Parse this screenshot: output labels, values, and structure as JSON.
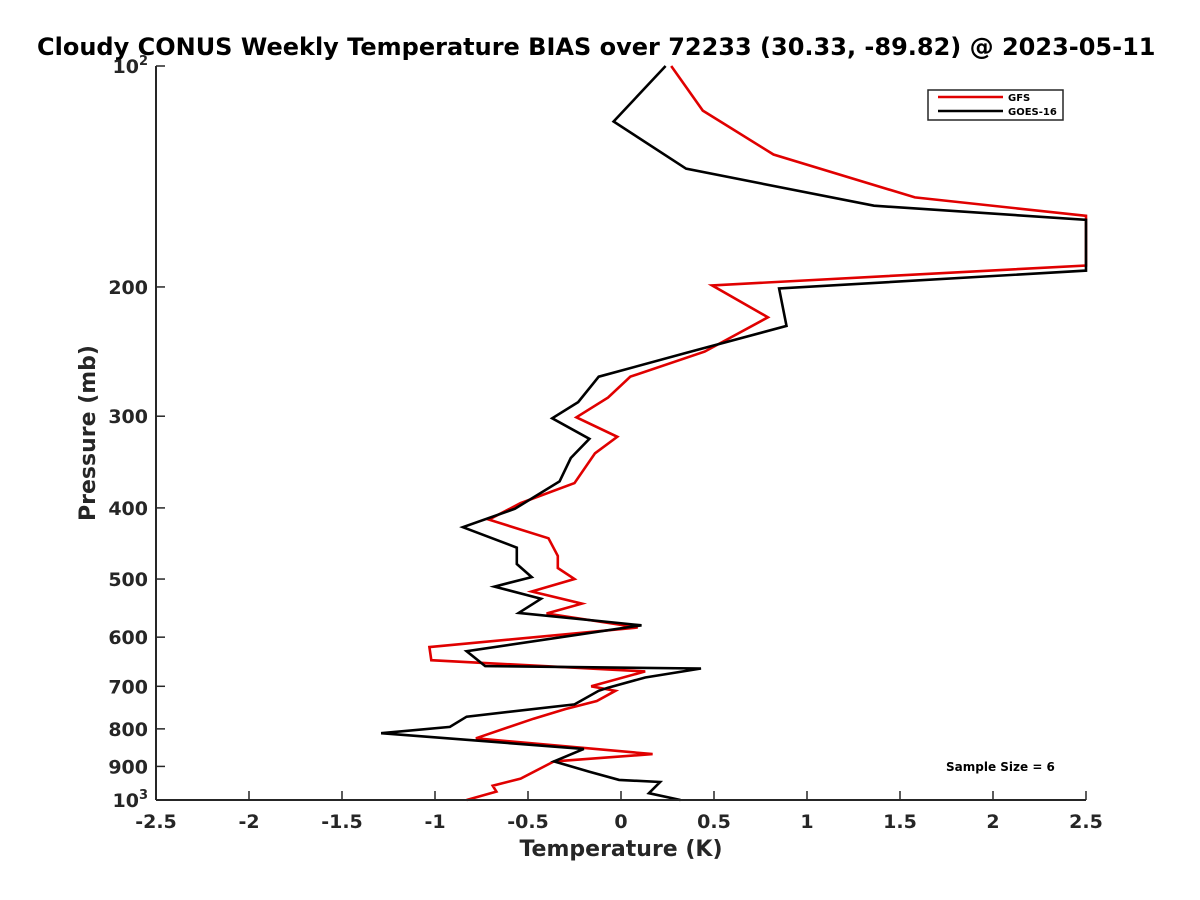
{
  "chart_data": {
    "type": "line",
    "title": "Cloudy CONUS Weekly Temperature BIAS over 72233 (30.33, -89.82) @ 2023-05-11",
    "xlabel": "Temperature (K)",
    "ylabel": "Pressure (mb)",
    "xlim": [
      -2.5,
      2.5
    ],
    "ylim": [
      100,
      1000
    ],
    "yscale": "log",
    "x_ticks": [
      -2.5,
      -2,
      -1.5,
      -1,
      -0.5,
      0,
      0.5,
      1,
      1.5,
      2,
      2.5
    ],
    "x_tick_labels": [
      "-2.5",
      "-2",
      "-1.5",
      "-1",
      "-0.5",
      "0",
      "0.5",
      "1",
      "1.5",
      "2",
      "2.5"
    ],
    "y_ticks": [
      100,
      200,
      300,
      400,
      500,
      600,
      700,
      800,
      900,
      1000
    ],
    "y_tick_labels": [
      {
        "base": "10",
        "exp": "2"
      },
      {
        "base": "200",
        "exp": ""
      },
      {
        "base": "300",
        "exp": ""
      },
      {
        "base": "400",
        "exp": ""
      },
      {
        "base": "500",
        "exp": ""
      },
      {
        "base": "600",
        "exp": ""
      },
      {
        "base": "700",
        "exp": ""
      },
      {
        "base": "800",
        "exp": ""
      },
      {
        "base": "900",
        "exp": ""
      },
      {
        "base": "10",
        "exp": "3"
      }
    ],
    "grid": false,
    "legend_position": "top-right",
    "annotation": "Sample Size = 6",
    "series": [
      {
        "name": "GFS",
        "color": "#e00000",
        "points": [
          [
            0.27,
            100
          ],
          [
            0.44,
            115
          ],
          [
            0.82,
            132
          ],
          [
            1.58,
            151
          ],
          [
            2.5,
            160
          ],
          [
            2.5,
            187
          ],
          [
            0.49,
            199
          ],
          [
            0.79,
            220
          ],
          [
            0.45,
            245
          ],
          [
            0.05,
            265
          ],
          [
            -0.07,
            283
          ],
          [
            -0.24,
            301
          ],
          [
            -0.02,
            320
          ],
          [
            -0.14,
            337
          ],
          [
            -0.25,
            370
          ],
          [
            -0.54,
            394
          ],
          [
            -0.71,
            415
          ],
          [
            -0.39,
            440
          ],
          [
            -0.34,
            465
          ],
          [
            -0.34,
            483
          ],
          [
            -0.25,
            500
          ],
          [
            -0.48,
            520
          ],
          [
            -0.21,
            540
          ],
          [
            -0.4,
            557
          ],
          [
            0.09,
            582
          ],
          [
            -1.03,
            619
          ],
          [
            -1.02,
            645
          ],
          [
            0.13,
            668
          ],
          [
            -0.16,
            700
          ],
          [
            -0.03,
            710
          ],
          [
            -0.13,
            733
          ],
          [
            -0.3,
            752
          ],
          [
            -0.47,
            775
          ],
          [
            -0.78,
            824
          ],
          [
            0.17,
            866
          ],
          [
            -0.36,
            886
          ],
          [
            -0.54,
            935
          ],
          [
            -0.69,
            956
          ],
          [
            -0.67,
            974
          ],
          [
            -0.83,
            1000
          ]
        ]
      },
      {
        "name": "GOES-16",
        "color": "#000000",
        "points": [
          [
            0.24,
            100
          ],
          [
            -0.04,
            119
          ],
          [
            0.35,
            138
          ],
          [
            1.36,
            155
          ],
          [
            2.5,
            162
          ],
          [
            2.5,
            190
          ],
          [
            0.85,
            201
          ],
          [
            0.89,
            226
          ],
          [
            0.35,
            246
          ],
          [
            -0.12,
            265
          ],
          [
            -0.23,
            287
          ],
          [
            -0.37,
            302
          ],
          [
            -0.17,
            322
          ],
          [
            -0.27,
            342
          ],
          [
            -0.33,
            368
          ],
          [
            -0.57,
            401
          ],
          [
            -0.85,
            425
          ],
          [
            -0.56,
            453
          ],
          [
            -0.56,
            477
          ],
          [
            -0.48,
            497
          ],
          [
            -0.68,
            512
          ],
          [
            -0.43,
            532
          ],
          [
            -0.55,
            556
          ],
          [
            0.11,
            578
          ],
          [
            -0.83,
            627
          ],
          [
            -0.73,
            657
          ],
          [
            0.43,
            662
          ],
          [
            0.13,
            681
          ],
          [
            -0.07,
            703
          ],
          [
            -0.12,
            710
          ],
          [
            -0.25,
            741
          ],
          [
            -0.83,
            770
          ],
          [
            -0.92,
            795
          ],
          [
            -1.29,
            811
          ],
          [
            -0.2,
            852
          ],
          [
            -0.36,
            886
          ],
          [
            -0.17,
            915
          ],
          [
            -0.01,
            939
          ],
          [
            0.21,
            945
          ],
          [
            0.15,
            979
          ],
          [
            0.32,
            1000
          ]
        ]
      }
    ]
  }
}
